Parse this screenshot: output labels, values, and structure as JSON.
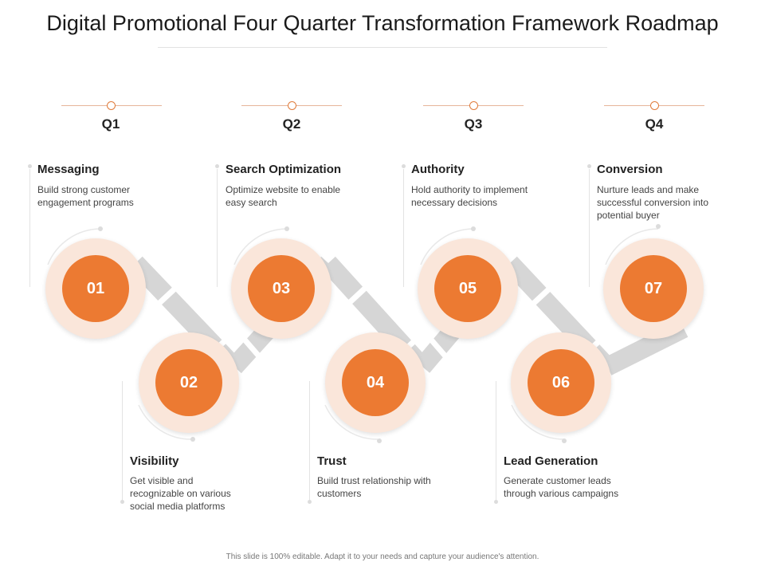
{
  "title": "Digital Promotional Four Quarter Transformation Framework Roadmap",
  "quarters": [
    "Q1",
    "Q2",
    "Q3",
    "Q4"
  ],
  "steps": [
    {
      "num": "01",
      "title": "Messaging",
      "desc": [
        "Build strong customer",
        "engagement  programs"
      ]
    },
    {
      "num": "02",
      "title": "Visibility",
      "desc": [
        "Get visible  and",
        "recognizable  on various",
        "social media platforms"
      ]
    },
    {
      "num": "03",
      "title": "Search Optimization",
      "desc": [
        "Optimize website to enable",
        "easy search"
      ]
    },
    {
      "num": "04",
      "title": "Trust",
      "desc": [
        "Build trust relationship with",
        "customers"
      ]
    },
    {
      "num": "05",
      "title": "Authority",
      "desc": [
        "Hold authority to implement",
        "necessary decisions"
      ]
    },
    {
      "num": "06",
      "title": "Lead Generation",
      "desc": [
        "Generate  customer leads",
        "through various  campaigns"
      ]
    },
    {
      "num": "07",
      "title": "Conversion",
      "desc": [
        "Nurture leads and make",
        "successful conversion into",
        "potential buyer"
      ]
    }
  ],
  "footer": "This slide is 100% editable. Adapt it to your needs and capture your audience's attention.",
  "colors": {
    "accent": "#ec7a32",
    "ring": "#fae6da",
    "connector": "#d6d6d6"
  }
}
